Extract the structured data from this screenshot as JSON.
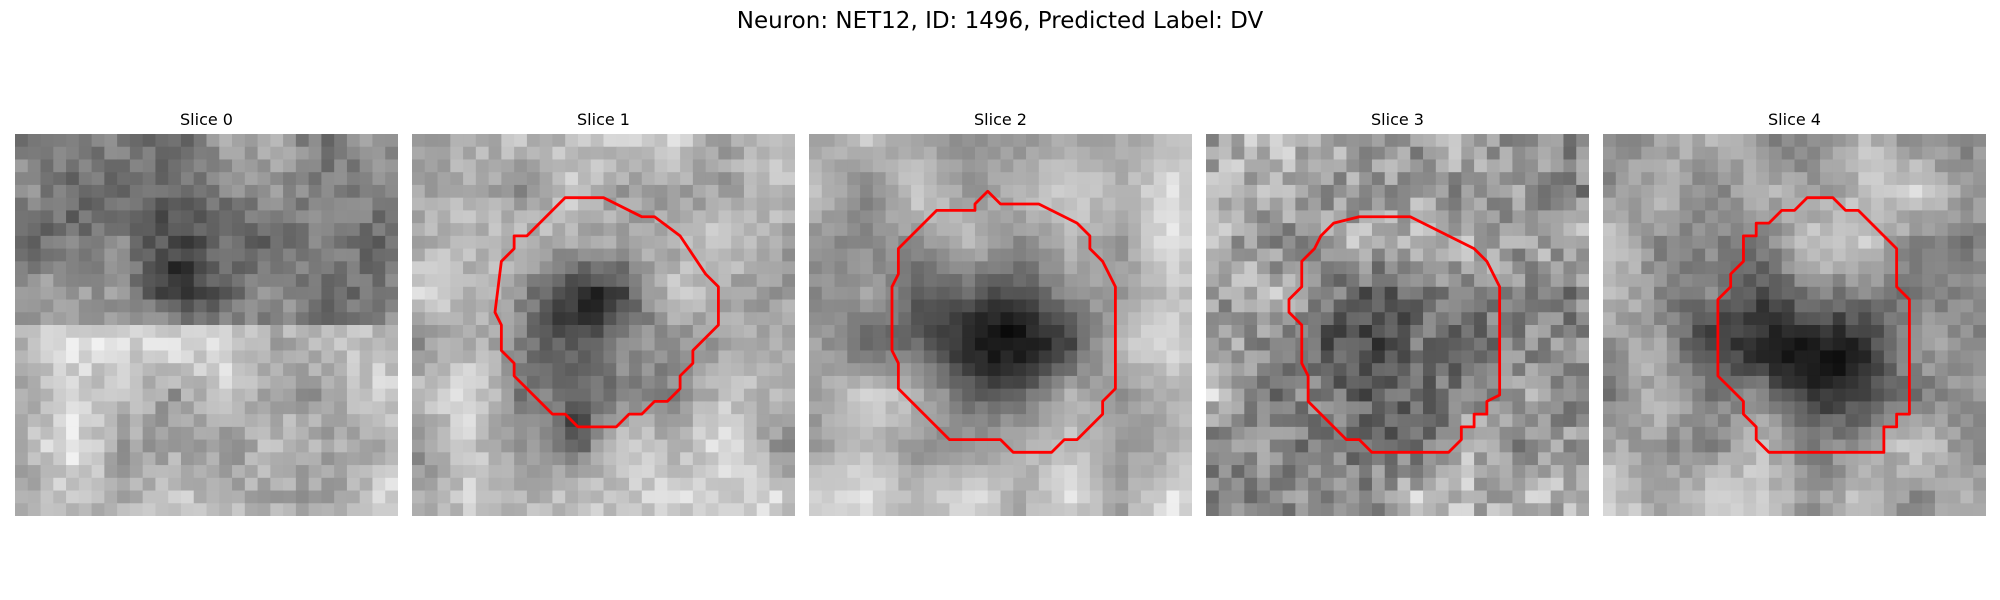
{
  "figure": {
    "title": "Neuron: NET12, ID: 1496, Predicted Label: DV"
  },
  "colors": {
    "contour": "#ff0000",
    "background": "#ffffff"
  },
  "panels": [
    {
      "title": "Slice 0",
      "has_contour": false
    },
    {
      "title": "Slice 1",
      "has_contour": true
    },
    {
      "title": "Slice 2",
      "has_contour": true
    },
    {
      "title": "Slice 3",
      "has_contour": true
    },
    {
      "title": "Slice 4",
      "has_contour": true
    }
  ]
}
